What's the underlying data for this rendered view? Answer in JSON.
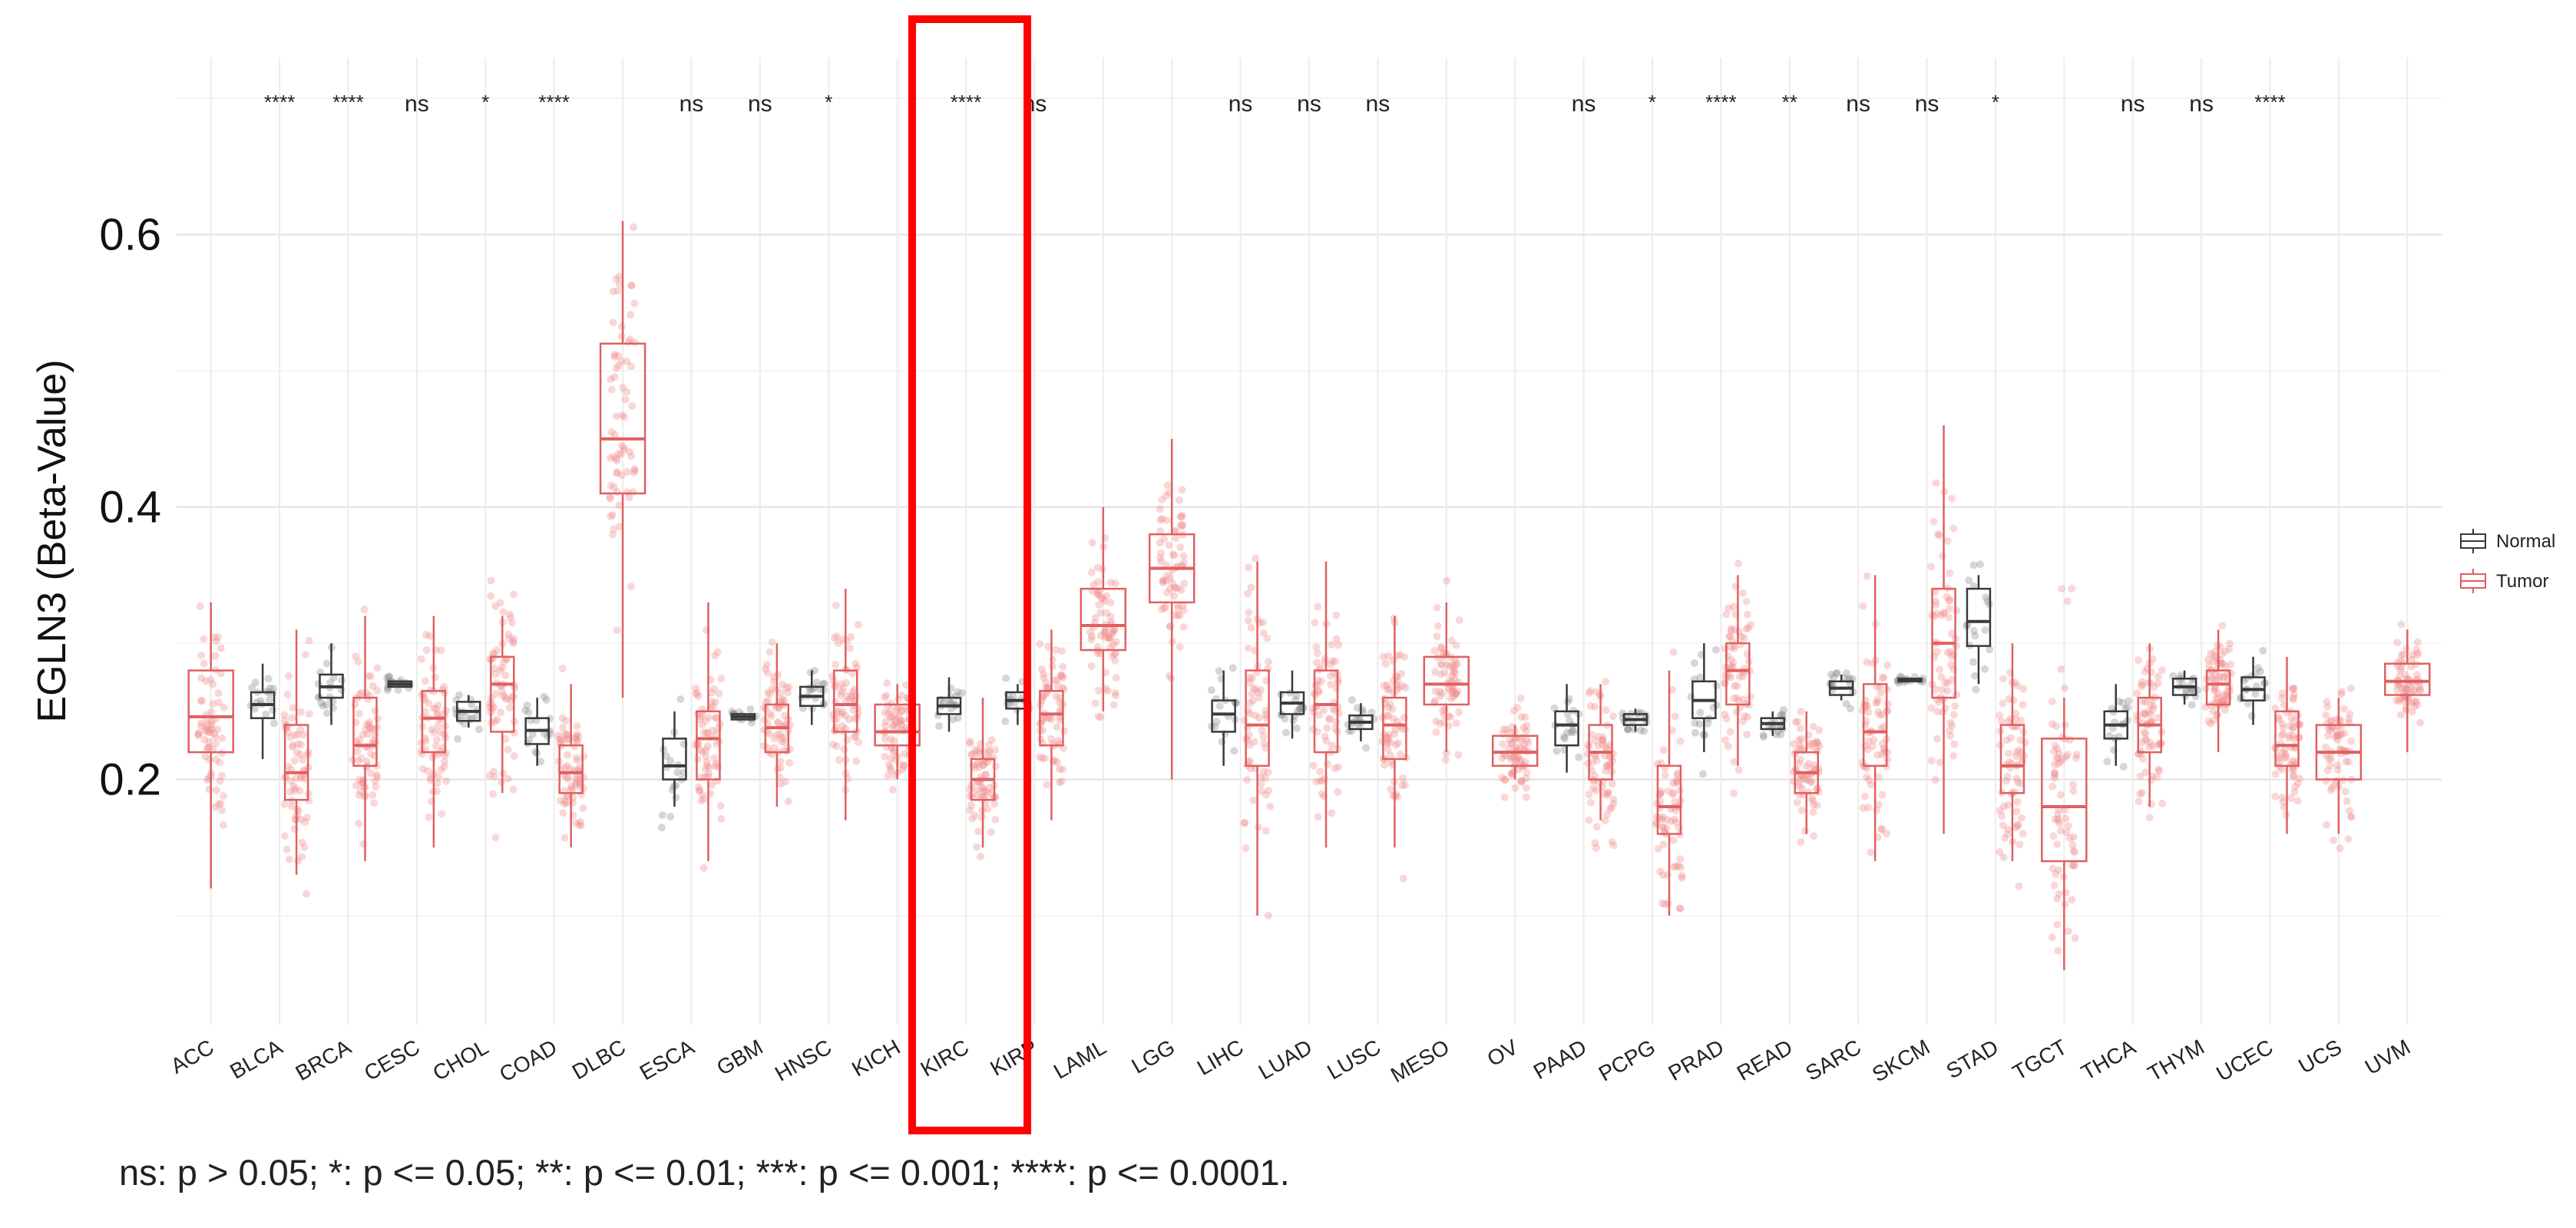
{
  "chart_data": {
    "type": "box",
    "ylabel": "EGLN3 (Beta-Value)",
    "yticks": [
      0.2,
      0.4,
      0.6
    ],
    "ylim": [
      0.02,
      0.73
    ],
    "grid": true,
    "legend": {
      "placement": "right",
      "entries": [
        {
          "name": "Normal",
          "color": "#3a3a3a"
        },
        {
          "name": "Tumor",
          "color": "#e06060"
        }
      ]
    },
    "colors": {
      "normal": "#3a3a3a",
      "tumor": "#e06060",
      "normal_points": "#8a8a8a",
      "tumor_points": "#f08c8c",
      "highlight": "#ff0000"
    },
    "categories": [
      "ACC",
      "BLCA",
      "BRCA",
      "CESC",
      "CHOL",
      "COAD",
      "DLBC",
      "ESCA",
      "GBM",
      "HNSC",
      "KICH",
      "KIRC",
      "KIRP",
      "LAML",
      "LGG",
      "LIHC",
      "LUAD",
      "LUSC",
      "MESO",
      "OV",
      "PAAD",
      "PCPG",
      "PRAD",
      "READ",
      "SARC",
      "SKCM",
      "STAD",
      "TGCT",
      "THCA",
      "THYM",
      "UCEC",
      "UCS",
      "UVM"
    ],
    "significance": [
      "",
      "****",
      "****",
      "ns",
      "*",
      "****",
      "",
      "ns",
      "ns",
      "*",
      "",
      "****",
      "ns",
      "",
      "",
      "ns",
      "ns",
      "ns",
      "",
      "",
      "ns",
      "*",
      "****",
      "**",
      "ns",
      "ns",
      "*",
      "",
      "ns",
      "ns",
      "****",
      "",
      ""
    ],
    "highlight_category": "KIRC",
    "series": [
      {
        "name": "Normal",
        "boxes": {
          "BLCA": {
            "q1": 0.245,
            "median": 0.255,
            "q3": 0.264,
            "wlo": 0.215,
            "whi": 0.285
          },
          "BRCA": {
            "q1": 0.26,
            "median": 0.268,
            "q3": 0.277,
            "wlo": 0.24,
            "whi": 0.3
          },
          "CESC": {
            "q1": 0.268,
            "median": 0.27,
            "q3": 0.272,
            "wlo": 0.268,
            "whi": 0.272
          },
          "CHOL": {
            "q1": 0.243,
            "median": 0.25,
            "q3": 0.257,
            "wlo": 0.238,
            "whi": 0.262
          },
          "COAD": {
            "q1": 0.226,
            "median": 0.236,
            "q3": 0.245,
            "wlo": 0.21,
            "whi": 0.26
          },
          "ESCA": {
            "q1": 0.2,
            "median": 0.21,
            "q3": 0.23,
            "wlo": 0.18,
            "whi": 0.25
          },
          "GBM": {
            "q1": 0.244,
            "median": 0.246,
            "q3": 0.248,
            "wlo": 0.244,
            "whi": 0.248
          },
          "HNSC": {
            "q1": 0.254,
            "median": 0.261,
            "q3": 0.268,
            "wlo": 0.24,
            "whi": 0.28
          },
          "KIRC": {
            "q1": 0.248,
            "median": 0.254,
            "q3": 0.26,
            "wlo": 0.235,
            "whi": 0.275
          },
          "KIRP": {
            "q1": 0.252,
            "median": 0.258,
            "q3": 0.264,
            "wlo": 0.24,
            "whi": 0.27
          },
          "LIHC": {
            "q1": 0.235,
            "median": 0.248,
            "q3": 0.258,
            "wlo": 0.21,
            "whi": 0.28
          },
          "LUAD": {
            "q1": 0.248,
            "median": 0.256,
            "q3": 0.264,
            "wlo": 0.23,
            "whi": 0.28
          },
          "LUSC": {
            "q1": 0.237,
            "median": 0.242,
            "q3": 0.247,
            "wlo": 0.228,
            "whi": 0.256
          },
          "PAAD": {
            "q1": 0.225,
            "median": 0.24,
            "q3": 0.25,
            "wlo": 0.205,
            "whi": 0.27
          },
          "PCPG": {
            "q1": 0.24,
            "median": 0.244,
            "q3": 0.248,
            "wlo": 0.235,
            "whi": 0.252
          },
          "PRAD": {
            "q1": 0.245,
            "median": 0.258,
            "q3": 0.272,
            "wlo": 0.22,
            "whi": 0.3
          },
          "READ": {
            "q1": 0.237,
            "median": 0.241,
            "q3": 0.245,
            "wlo": 0.232,
            "whi": 0.25
          },
          "SARC": {
            "q1": 0.262,
            "median": 0.267,
            "q3": 0.272,
            "wlo": 0.258,
            "whi": 0.277
          },
          "SKCM": {
            "q1": 0.272,
            "median": 0.273,
            "q3": 0.274,
            "wlo": 0.272,
            "whi": 0.274
          },
          "STAD": {
            "q1": 0.298,
            "median": 0.316,
            "q3": 0.34,
            "wlo": 0.27,
            "whi": 0.35
          },
          "THCA": {
            "q1": 0.23,
            "median": 0.24,
            "q3": 0.25,
            "wlo": 0.21,
            "whi": 0.27
          },
          "THYM": {
            "q1": 0.262,
            "median": 0.268,
            "q3": 0.274,
            "wlo": 0.255,
            "whi": 0.28
          },
          "UCEC": {
            "q1": 0.258,
            "median": 0.266,
            "q3": 0.275,
            "wlo": 0.24,
            "whi": 0.29
          }
        }
      },
      {
        "name": "Tumor",
        "boxes": {
          "ACC": {
            "q1": 0.22,
            "median": 0.246,
            "q3": 0.28,
            "wlo": 0.12,
            "whi": 0.33
          },
          "BLCA": {
            "q1": 0.185,
            "median": 0.205,
            "q3": 0.24,
            "wlo": 0.13,
            "whi": 0.31
          },
          "BRCA": {
            "q1": 0.21,
            "median": 0.225,
            "q3": 0.26,
            "wlo": 0.14,
            "whi": 0.32
          },
          "CESC": {
            "q1": 0.22,
            "median": 0.245,
            "q3": 0.265,
            "wlo": 0.15,
            "whi": 0.32
          },
          "CHOL": {
            "q1": 0.235,
            "median": 0.27,
            "q3": 0.29,
            "wlo": 0.19,
            "whi": 0.32
          },
          "COAD": {
            "q1": 0.19,
            "median": 0.205,
            "q3": 0.225,
            "wlo": 0.15,
            "whi": 0.27
          },
          "DLBC": {
            "q1": 0.41,
            "median": 0.45,
            "q3": 0.52,
            "wlo": 0.26,
            "whi": 0.61
          },
          "ESCA": {
            "q1": 0.2,
            "median": 0.23,
            "q3": 0.25,
            "wlo": 0.14,
            "whi": 0.33
          },
          "GBM": {
            "q1": 0.22,
            "median": 0.238,
            "q3": 0.255,
            "wlo": 0.18,
            "whi": 0.3
          },
          "HNSC": {
            "q1": 0.235,
            "median": 0.255,
            "q3": 0.28,
            "wlo": 0.17,
            "whi": 0.34
          },
          "KICH": {
            "q1": 0.225,
            "median": 0.235,
            "q3": 0.255,
            "wlo": 0.2,
            "whi": 0.27
          },
          "KIRC": {
            "q1": 0.185,
            "median": 0.2,
            "q3": 0.215,
            "wlo": 0.15,
            "whi": 0.26
          },
          "KIRP": {
            "q1": 0.225,
            "median": 0.248,
            "q3": 0.265,
            "wlo": 0.17,
            "whi": 0.31
          },
          "LAML": {
            "q1": 0.295,
            "median": 0.313,
            "q3": 0.34,
            "wlo": 0.25,
            "whi": 0.4
          },
          "LGG": {
            "q1": 0.33,
            "median": 0.355,
            "q3": 0.38,
            "wlo": 0.2,
            "whi": 0.45
          },
          "LIHC": {
            "q1": 0.21,
            "median": 0.24,
            "q3": 0.28,
            "wlo": 0.1,
            "whi": 0.36
          },
          "LUAD": {
            "q1": 0.22,
            "median": 0.255,
            "q3": 0.28,
            "wlo": 0.15,
            "whi": 0.36
          },
          "LUSC": {
            "q1": 0.215,
            "median": 0.24,
            "q3": 0.26,
            "wlo": 0.15,
            "whi": 0.32
          },
          "MESO": {
            "q1": 0.255,
            "median": 0.27,
            "q3": 0.29,
            "wlo": 0.22,
            "whi": 0.33
          },
          "OV": {
            "q1": 0.21,
            "median": 0.22,
            "q3": 0.232,
            "wlo": 0.2,
            "whi": 0.24
          },
          "PAAD": {
            "q1": 0.2,
            "median": 0.22,
            "q3": 0.24,
            "wlo": 0.17,
            "whi": 0.27
          },
          "PCPG": {
            "q1": 0.16,
            "median": 0.18,
            "q3": 0.21,
            "wlo": 0.1,
            "whi": 0.28
          },
          "PRAD": {
            "q1": 0.255,
            "median": 0.28,
            "q3": 0.3,
            "wlo": 0.21,
            "whi": 0.35
          },
          "READ": {
            "q1": 0.19,
            "median": 0.205,
            "q3": 0.22,
            "wlo": 0.16,
            "whi": 0.25
          },
          "SARC": {
            "q1": 0.21,
            "median": 0.235,
            "q3": 0.27,
            "wlo": 0.14,
            "whi": 0.35
          },
          "SKCM": {
            "q1": 0.26,
            "median": 0.3,
            "q3": 0.34,
            "wlo": 0.16,
            "whi": 0.46
          },
          "STAD": {
            "q1": 0.19,
            "median": 0.21,
            "q3": 0.24,
            "wlo": 0.14,
            "whi": 0.3
          },
          "TGCT": {
            "q1": 0.14,
            "median": 0.18,
            "q3": 0.23,
            "wlo": 0.06,
            "whi": 0.26
          },
          "THCA": {
            "q1": 0.22,
            "median": 0.24,
            "q3": 0.26,
            "wlo": 0.18,
            "whi": 0.3
          },
          "THYM": {
            "q1": 0.255,
            "median": 0.27,
            "q3": 0.28,
            "wlo": 0.22,
            "whi": 0.31
          },
          "UCEC": {
            "q1": 0.21,
            "median": 0.225,
            "q3": 0.25,
            "wlo": 0.16,
            "whi": 0.29
          },
          "UCS": {
            "q1": 0.2,
            "median": 0.22,
            "q3": 0.24,
            "wlo": 0.16,
            "whi": 0.26
          },
          "UVM": {
            "q1": 0.262,
            "median": 0.272,
            "q3": 0.285,
            "wlo": 0.22,
            "whi": 0.31
          }
        }
      }
    ]
  },
  "footnote": "ns: p > 0.05; *: p <= 0.05; **: p <= 0.01; ***: p <= 0.001; ****: p <= 0.0001."
}
